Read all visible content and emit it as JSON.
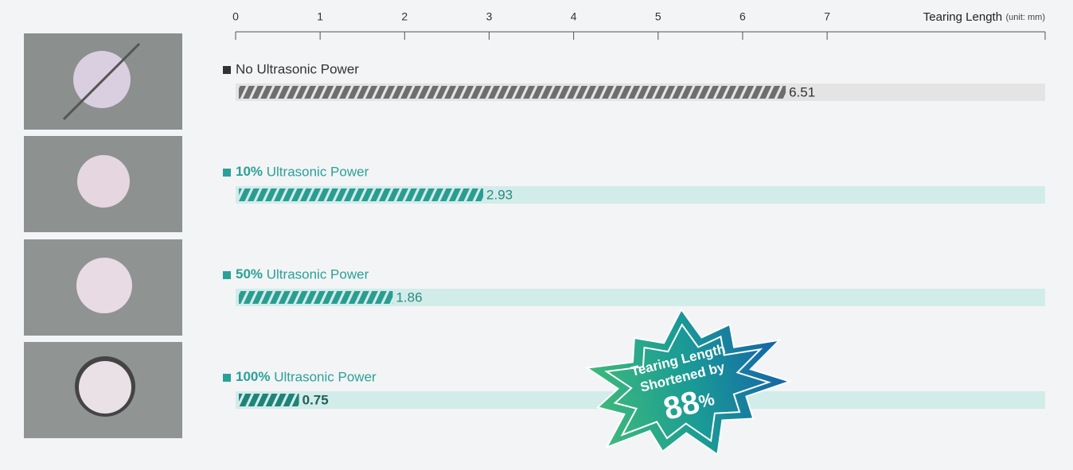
{
  "chart_data": {
    "type": "bar",
    "orientation": "horizontal",
    "x_label": "Tearing Length",
    "x_label_unit": "(unit: mm)",
    "categories": [
      "No Ultrasonic Power",
      "10% Ultrasonic Power",
      "50% Ultrasonic Power",
      "100% Ultrasonic Power"
    ],
    "values": [
      6.51,
      2.93,
      1.86,
      0.75
    ],
    "colors": [
      "#6e6e6e",
      "#2a9d92",
      "#2a9d92",
      "#1f8379"
    ],
    "label_colors": [
      "#333333",
      "#2aa198",
      "#2aa198",
      "#2aa198"
    ],
    "track_colors": [
      "#e4e4e4",
      "#d2ecea",
      "#d2ecea",
      "#d2ecea"
    ],
    "xlim": [
      0,
      9.58
    ],
    "xticks": [
      0,
      1,
      2,
      3,
      4,
      5,
      6,
      7
    ],
    "annotation": {
      "lines": [
        "Tearing Length",
        "Shortened by"
      ],
      "highlight": "88%"
    }
  }
}
